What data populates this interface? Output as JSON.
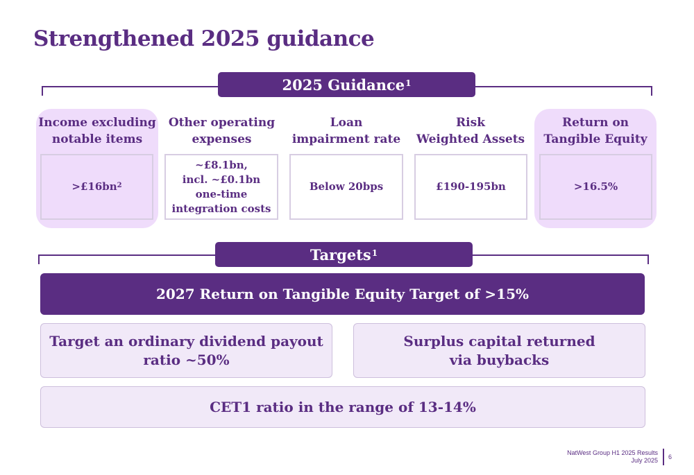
{
  "title": "Strengthened 2025 guidance",
  "guidance": {
    "heading": "2025 Guidance",
    "heading_sup": "1",
    "columns": [
      {
        "header": [
          "Income excluding",
          "notable items"
        ],
        "value": ">£16bn",
        "value_sup": "2",
        "highlight": true
      },
      {
        "header": [
          "Other operating",
          "expenses"
        ],
        "value_lines": [
          "~£8.1bn,",
          "incl. ~£0.1bn",
          "one-time",
          "integration costs"
        ],
        "highlight": false
      },
      {
        "header": [
          "Loan",
          "impairment rate"
        ],
        "value": "Below 20bps",
        "highlight": false
      },
      {
        "header": [
          "Risk",
          "Weighted Assets"
        ],
        "value": "£190-195bn",
        "highlight": false
      },
      {
        "header": [
          "Return on",
          "Tangible Equity"
        ],
        "value": ">16.5%",
        "highlight": true
      }
    ]
  },
  "targets": {
    "heading": "Targets",
    "heading_sup": "1",
    "main": "2027 Return on Tangible Equity Target of >15%",
    "dividend": [
      "Target an ordinary dividend payout",
      "ratio ~50%"
    ],
    "buybacks": [
      "Surplus capital returned",
      "via buybacks"
    ],
    "cet1": "CET1 ratio in the range of 13-14%"
  },
  "footer": {
    "line1": "NatWest Group H1 2025 Results",
    "line2": "July 2025",
    "page": "6"
  },
  "colors": {
    "primary": "#5a2d82",
    "highlight_bg": "#efdcfb",
    "target_bg": "#f1e9f8"
  }
}
